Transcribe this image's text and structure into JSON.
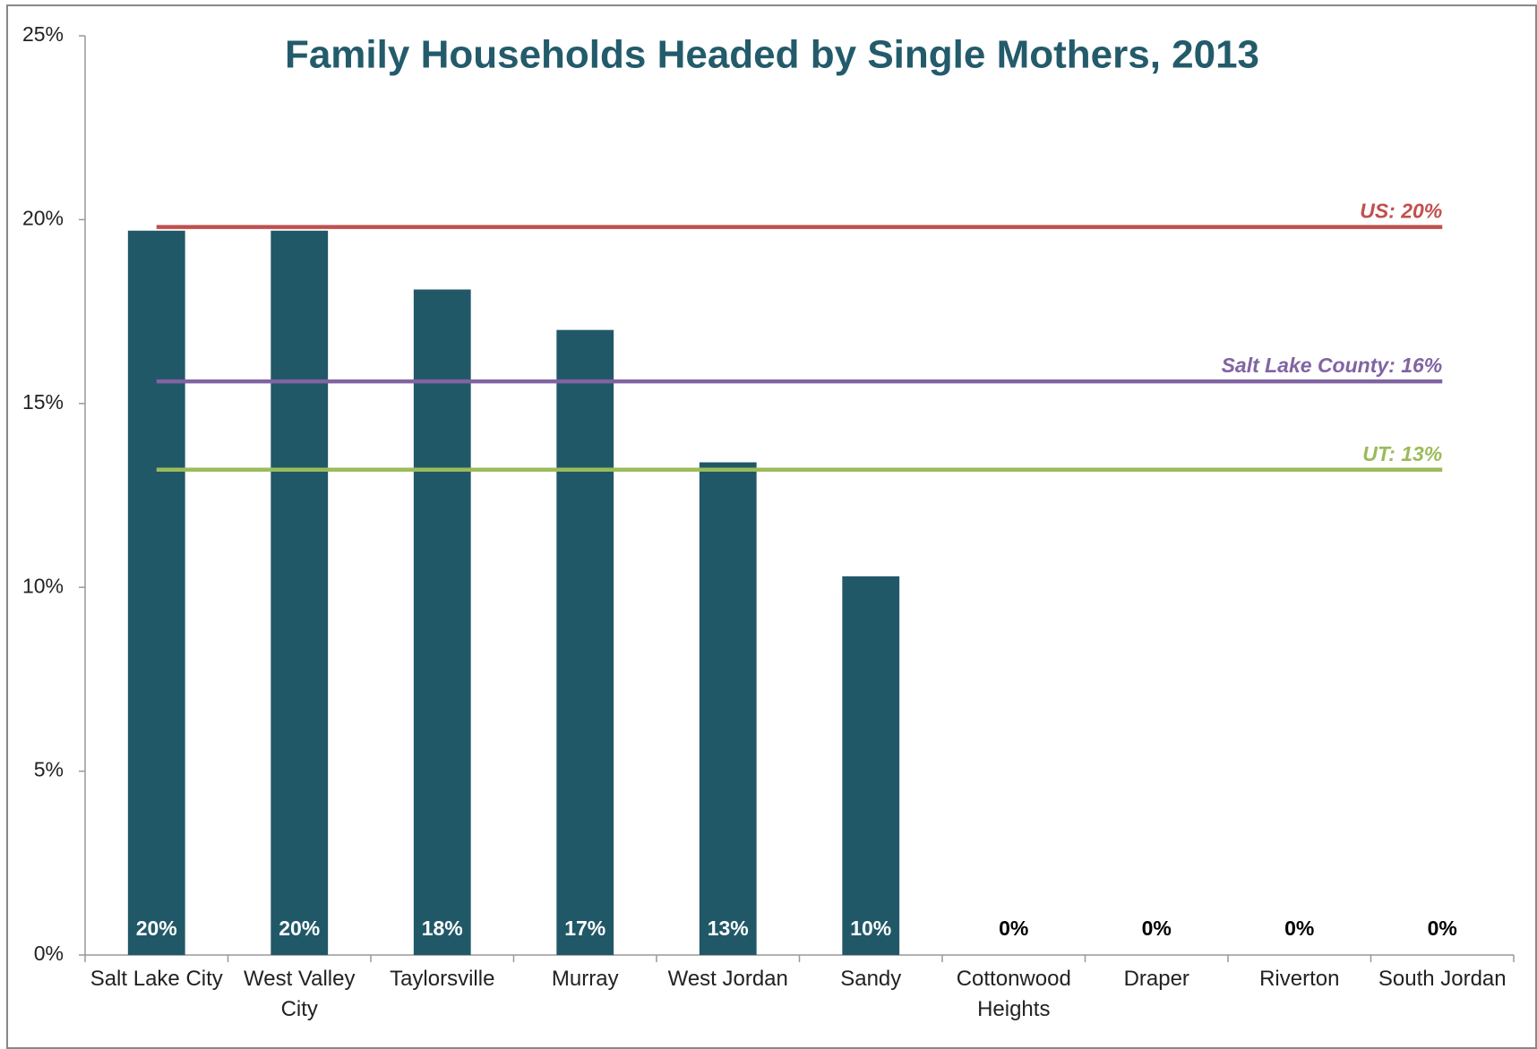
{
  "chart_data": {
    "type": "bar",
    "title": "Family Households Headed by Single Mothers, 2013",
    "categories": [
      "Salt Lake City",
      "West Valley City",
      "Taylorsville",
      "Murray",
      "West Jordan",
      "Sandy",
      "Cottonwood Heights",
      "Draper",
      "Riverton",
      "South Jordan"
    ],
    "values": [
      19.7,
      19.7,
      18.1,
      17.0,
      13.4,
      10.3,
      0,
      0,
      0,
      0
    ],
    "value_labels": [
      "20%",
      "20%",
      "18%",
      "17%",
      "13%",
      "10%",
      "0%",
      "0%",
      "0%",
      "0%"
    ],
    "color": "#215867",
    "ylim": [
      0,
      25
    ],
    "yticks": [
      {
        "value": 0,
        "label": "0%"
      },
      {
        "value": 5,
        "label": "5%"
      },
      {
        "value": 10,
        "label": "10%"
      },
      {
        "value": 15,
        "label": "15%"
      },
      {
        "value": 20,
        "label": "20%"
      },
      {
        "value": 25,
        "label": "25%"
      }
    ],
    "grid": false,
    "reference_lines": [
      {
        "label": "US: 20%",
        "value": 19.8,
        "color": "#c0504d"
      },
      {
        "label": "Salt Lake County: 16%",
        "value": 15.6,
        "color": "#8064a2"
      },
      {
        "label": "UT: 13%",
        "value": 13.2,
        "color": "#9bbb59"
      }
    ]
  }
}
